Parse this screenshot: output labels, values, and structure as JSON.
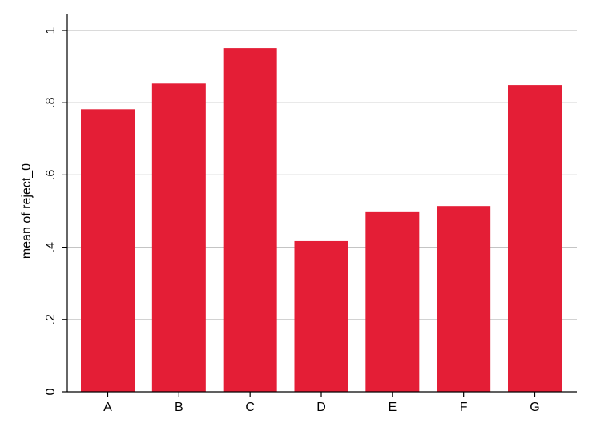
{
  "chart_data": {
    "type": "bar",
    "title": "",
    "xlabel": "",
    "ylabel": "mean of reject_0",
    "categories": [
      "A",
      "B",
      "C",
      "D",
      "E",
      "F",
      "G"
    ],
    "values": [
      0.782,
      0.853,
      0.951,
      0.417,
      0.497,
      0.514,
      0.849
    ],
    "ylim": [
      0,
      1
    ],
    "yticks": [
      0,
      0.2,
      0.4,
      0.6,
      0.8,
      1
    ],
    "ytick_labels": [
      "0",
      ".2",
      ".4",
      ".6",
      ".8",
      "1"
    ],
    "grid": true,
    "legend": "none",
    "colors": {
      "bar": "#e41e36",
      "grid": "#c4c4c4",
      "axis": "#000000"
    }
  }
}
